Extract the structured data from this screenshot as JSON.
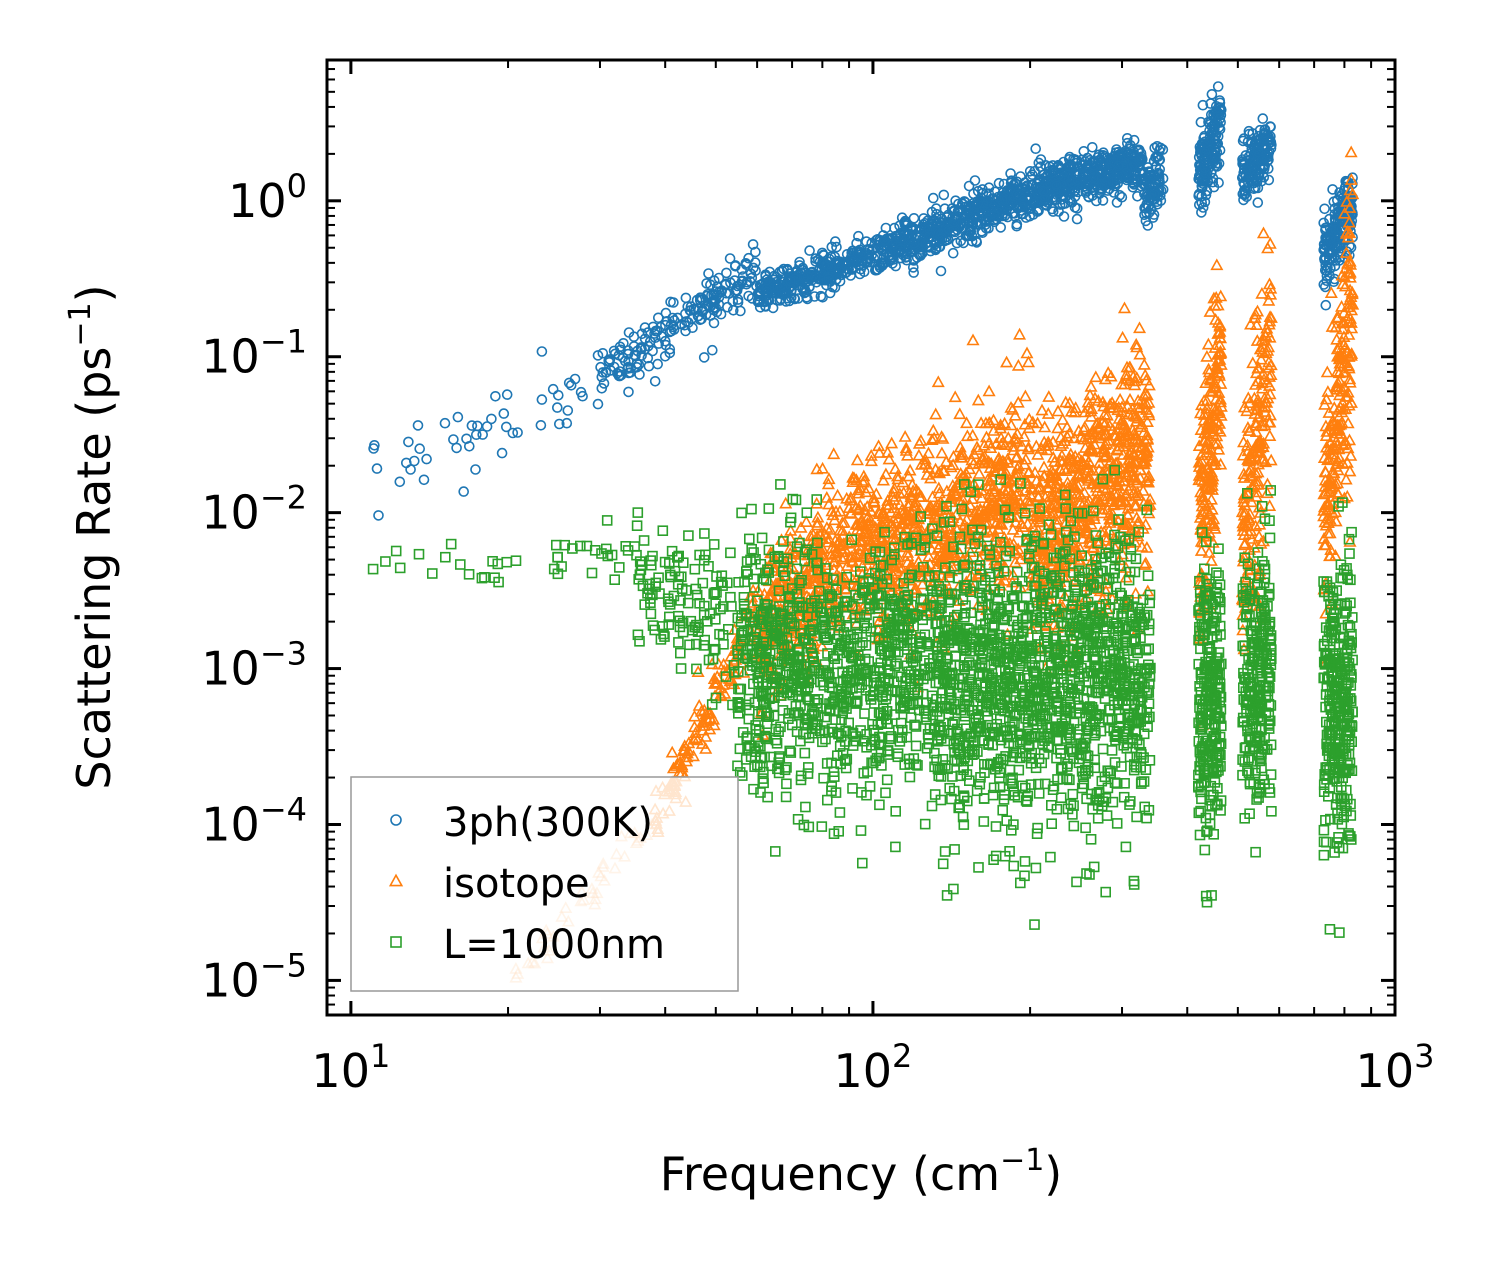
{
  "chart_data": {
    "type": "scatter",
    "xscale": "log",
    "yscale": "log",
    "xlabel": "Frequency (cm",
    "xlabel_sup": "−1",
    "xlabel_end": ")",
    "ylabel": "Scattering Rate (ps",
    "ylabel_sup": "−1",
    "ylabel_end": ")",
    "xlim": [
      9,
      1000
    ],
    "ylim": [
      6e-06,
      8
    ],
    "xticks": [
      {
        "base": "10",
        "exp": "1",
        "value": 10
      },
      {
        "base": "10",
        "exp": "2",
        "value": 100
      },
      {
        "base": "10",
        "exp": "3",
        "value": 1000
      }
    ],
    "yticks": [
      {
        "base": "10",
        "exp": "−5",
        "value": 1e-05
      },
      {
        "base": "10",
        "exp": "−4",
        "value": 0.0001
      },
      {
        "base": "10",
        "exp": "−3",
        "value": 0.001
      },
      {
        "base": "10",
        "exp": "−2",
        "value": 0.01
      },
      {
        "base": "10",
        "exp": "−1",
        "value": 0.1
      },
      {
        "base": "10",
        "exp": "0",
        "value": 1
      }
    ],
    "legend_position": "lower-left",
    "series": [
      {
        "name": "3ph(300K)",
        "marker": "circle",
        "color": "#1f77b4",
        "clusters": [
          {
            "x": [
              11,
              40
            ],
            "ylog": [
              -1.7,
              -1.05
            ],
            "n": 60,
            "spread": 0.12
          },
          {
            "x": [
              30,
              60
            ],
            "ylog": [
              -1.1,
              -0.45
            ],
            "n": 180,
            "spread": 0.08
          },
          {
            "x": [
              60,
              110
            ],
            "ylog": [
              -0.6,
              -0.3
            ],
            "n": 350,
            "spread": 0.06
          },
          {
            "x": [
              110,
              200
            ],
            "ylog": [
              -0.3,
              0.05
            ],
            "n": 450,
            "spread": 0.07
          },
          {
            "x": [
              200,
              330
            ],
            "ylog": [
              0.05,
              0.25
            ],
            "n": 450,
            "spread": 0.08
          },
          {
            "x": [
              330,
              360
            ],
            "ylog": [
              0.0,
              0.2
            ],
            "n": 80,
            "spread": 0.1
          },
          {
            "x": [
              420,
              465
            ],
            "ylog": [
              0.15,
              0.55
            ],
            "n": 150,
            "spread": 0.12
          },
          {
            "x": [
              510,
              580
            ],
            "ylog": [
              0.15,
              0.35
            ],
            "n": 150,
            "spread": 0.1
          },
          {
            "x": [
              730,
              830
            ],
            "ylog": [
              -0.35,
              0.0
            ],
            "n": 180,
            "spread": 0.12
          }
        ]
      },
      {
        "name": "isotope",
        "marker": "triangle",
        "color": "#ff7f0e",
        "clusters": [
          {
            "x": [
              20,
              38
            ],
            "ylog": [
              -5.0,
              -4.0
            ],
            "n": 40,
            "spread": 0.06,
            "alpha": 0.45
          },
          {
            "x": [
              38,
              60
            ],
            "ylog": [
              -4.0,
              -2.6
            ],
            "n": 120,
            "spread": 0.1
          },
          {
            "x": [
              60,
              100
            ],
            "ylog": [
              -2.8,
              -2.1
            ],
            "n": 450,
            "spread": 0.25
          },
          {
            "x": [
              100,
              200
            ],
            "ylog": [
              -2.3,
              -1.8
            ],
            "n": 700,
            "spread": 0.3
          },
          {
            "x": [
              200,
              340
            ],
            "ylog": [
              -2.2,
              -1.6
            ],
            "n": 700,
            "spread": 0.35
          },
          {
            "x": [
              420,
              465
            ],
            "ylog": [
              -2.2,
              -1.1
            ],
            "n": 200,
            "spread": 0.4
          },
          {
            "x": [
              510,
              580
            ],
            "ylog": [
              -2.2,
              -1.0
            ],
            "n": 200,
            "spread": 0.4
          },
          {
            "x": [
              730,
              830
            ],
            "ylog": [
              -2.0,
              -0.6
            ],
            "n": 220,
            "spread": 0.45
          }
        ]
      },
      {
        "name": "L=1000nm",
        "marker": "square",
        "color": "#2ca02c",
        "clusters": [
          {
            "x": [
              11,
              35
            ],
            "ylog": [
              -2.35,
              -2.25
            ],
            "n": 40,
            "spread": 0.08
          },
          {
            "x": [
              35,
              55
            ],
            "ylog": [
              -2.5,
              -2.8
            ],
            "n": 120,
            "spread": 0.25
          },
          {
            "x": [
              55,
              130
            ],
            "ylog": [
              -3.0,
              -3.0
            ],
            "n": 900,
            "spread": 0.4
          },
          {
            "x": [
              130,
              340
            ],
            "ylog": [
              -3.05,
              -3.05
            ],
            "n": 1400,
            "spread": 0.45
          },
          {
            "x": [
              420,
              465
            ],
            "ylog": [
              -3.2,
              -3.2
            ],
            "n": 250,
            "spread": 0.45
          },
          {
            "x": [
              510,
              580
            ],
            "ylog": [
              -3.1,
              -3.1
            ],
            "n": 250,
            "spread": 0.45
          },
          {
            "x": [
              730,
              830
            ],
            "ylog": [
              -3.2,
              -3.2
            ],
            "n": 300,
            "spread": 0.45
          }
        ]
      }
    ]
  }
}
